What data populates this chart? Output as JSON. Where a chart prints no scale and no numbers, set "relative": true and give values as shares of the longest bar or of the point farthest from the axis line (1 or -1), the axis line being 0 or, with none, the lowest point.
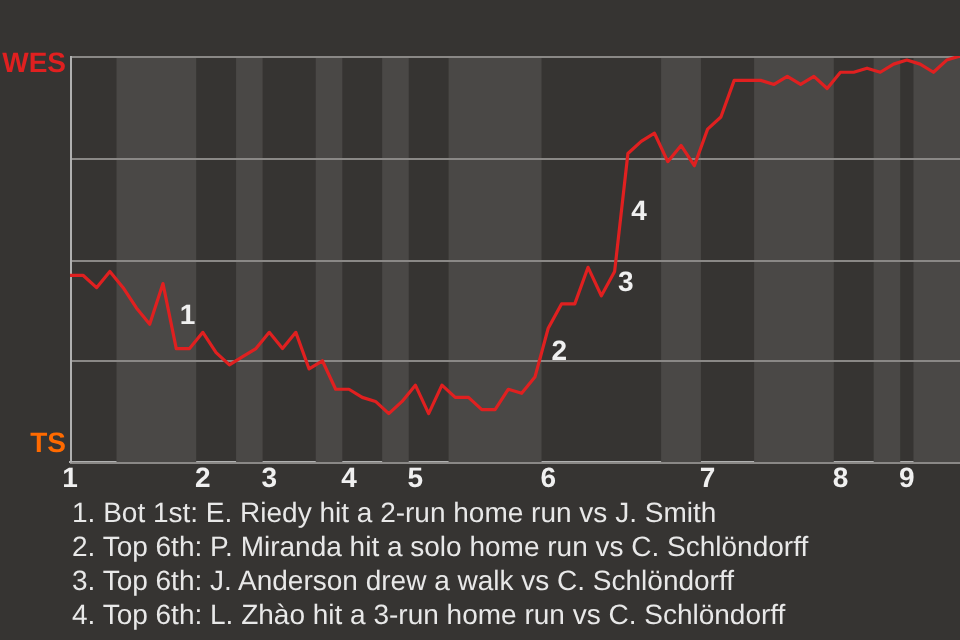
{
  "chart_data": {
    "type": "line",
    "relative": true,
    "categories": [
      "1",
      null,
      null,
      null,
      null,
      null,
      null,
      null,
      null,
      null,
      "2",
      null,
      null,
      null,
      null,
      "3",
      null,
      null,
      null,
      null,
      null,
      "4",
      null,
      null,
      null,
      null,
      "5",
      null,
      null,
      null,
      null,
      null,
      null,
      null,
      null,
      null,
      "6",
      null,
      null,
      null,
      null,
      null,
      null,
      null,
      null,
      null,
      null,
      null,
      "7",
      null,
      null,
      null,
      null,
      null,
      null,
      null,
      null,
      null,
      "8",
      null,
      null,
      null,
      null,
      "9",
      null,
      null,
      null,
      null
    ],
    "grid": "y",
    "legend": false,
    "marker": "none",
    "line_style": "solid",
    "series": [
      {
        "color": "#e02020",
        "values": [
          0.46,
          0.46,
          0.43,
          0.47,
          0.43,
          0.38,
          0.34,
          0.44,
          0.28,
          0.28,
          0.32,
          0.27,
          0.24,
          0.26,
          0.28,
          0.32,
          0.28,
          0.32,
          0.23,
          0.25,
          0.18,
          0.18,
          0.16,
          0.15,
          0.12,
          0.15,
          0.19,
          0.12,
          0.19,
          0.16,
          0.16,
          0.13,
          0.13,
          0.18,
          0.17,
          0.21,
          0.33,
          0.39,
          0.39,
          0.48,
          0.41,
          0.47,
          0.76,
          0.79,
          0.81,
          0.74,
          0.78,
          0.73,
          0.82,
          0.85,
          0.94,
          0.94,
          0.94,
          0.93,
          0.95,
          0.93,
          0.95,
          0.92,
          0.96,
          0.96,
          0.97,
          0.96,
          0.98,
          0.99,
          0.98,
          0.96,
          0.99,
          1.0
        ]
      }
    ],
    "annotations": [
      "WES",
      "TS",
      {
        "text": "1",
        "y": 0.28
      },
      {
        "text": "2",
        "y": 0.33
      },
      {
        "text": "3",
        "y": 0.47
      },
      {
        "text": "4",
        "y": 0.76
      },
      "1. Bot 1st: E. Riedy hit a 2-run home run vs J. Smith",
      "2. Top 6th: P. Miranda hit a solo home run vs C. Schlöndorff",
      "3. Top 6th: J. Anderson drew a walk vs C. Schlöndorff",
      "4. Top 6th: L. Zhào hit a 3-run home run vs C. Schlöndorff"
    ]
  }
}
